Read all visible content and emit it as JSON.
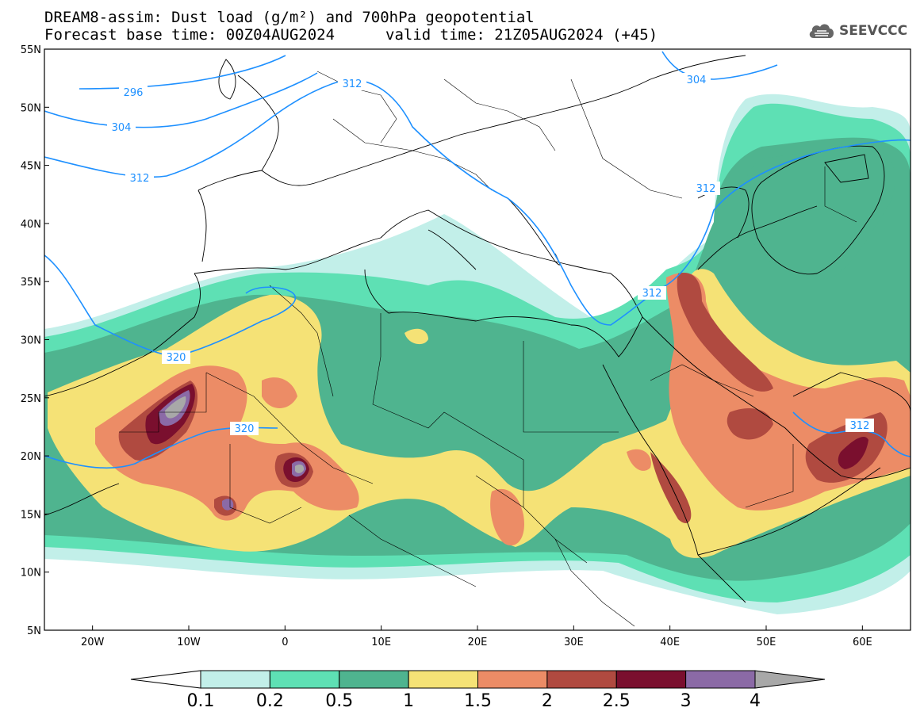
{
  "title": {
    "line1": "DREAM8-assim: Dust load (g/m²) and 700hPa geopotential",
    "line2_base": "Forecast base time: 00Z04AUG2024",
    "line2_valid": "valid time: 21Z05AUG2024 (+45)"
  },
  "logo": {
    "icon": "cloud-logo-icon",
    "text": "SEEVCCC"
  },
  "axes": {
    "lon_range": [
      -25,
      65
    ],
    "lat_range": [
      5,
      55
    ],
    "x_ticks": [
      "20W",
      "10W",
      "0",
      "10E",
      "20E",
      "30E",
      "40E",
      "50E",
      "60E"
    ],
    "y_ticks": [
      "5N",
      "10N",
      "15N",
      "20N",
      "25N",
      "30N",
      "35N",
      "40N",
      "45N",
      "50N",
      "55N"
    ]
  },
  "contours": {
    "color": "#1e90ff",
    "labels": [
      "296",
      "304",
      "312",
      "312",
      "304",
      "312",
      "312",
      "320",
      "320",
      "312"
    ]
  },
  "colorbar": {
    "levels": [
      "0.1",
      "0.2",
      "0.5",
      "1",
      "1.5",
      "2",
      "2.5",
      "3",
      "4"
    ],
    "colors": [
      "#c2efe9",
      "#5ee0b4",
      "#4fb48f",
      "#f5e276",
      "#ec8c66",
      "#b04a40",
      "#7a0f2e",
      "#8b6aa6",
      "#a8a8a8"
    ]
  }
}
